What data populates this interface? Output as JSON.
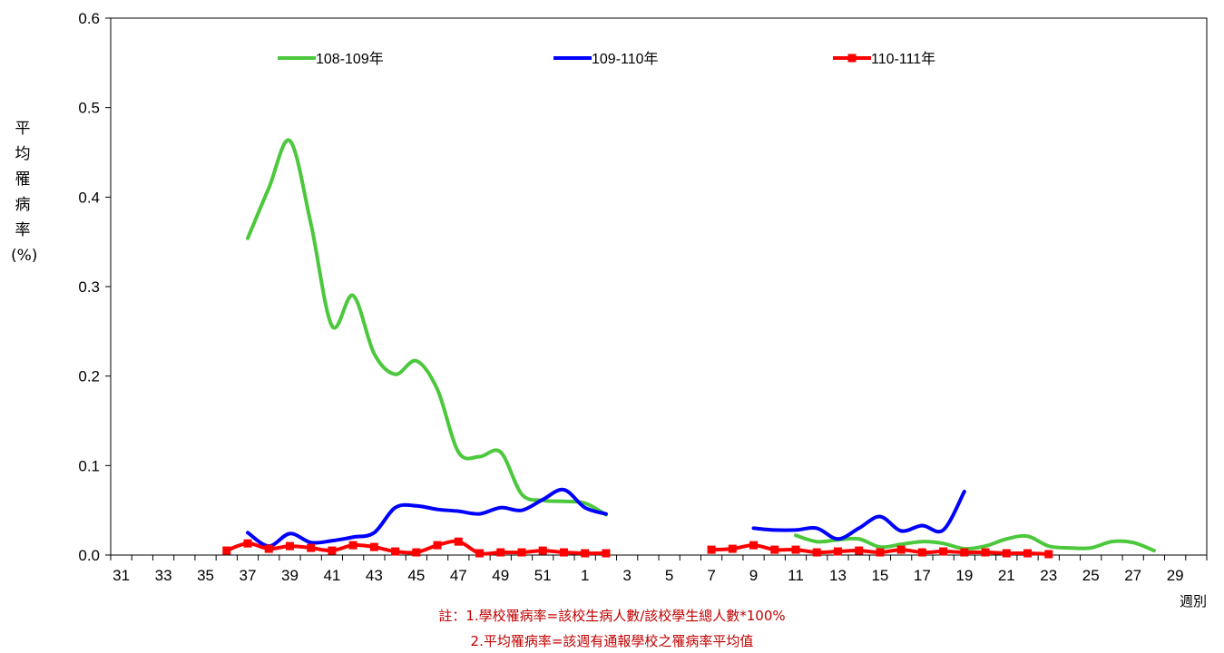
{
  "chart_data": {
    "type": "line",
    "ylabel": "平均罹病率(%)",
    "xlabel": "週別",
    "ylim": [
      0,
      0.6
    ],
    "yticks": [
      "0.0",
      "0.1",
      "0.2",
      "0.3",
      "0.4",
      "0.5",
      "0.6"
    ],
    "week_order": [
      31,
      32,
      33,
      34,
      35,
      36,
      37,
      38,
      39,
      40,
      41,
      42,
      43,
      44,
      45,
      46,
      47,
      48,
      49,
      50,
      51,
      52,
      1,
      2,
      3,
      4,
      5,
      6,
      7,
      8,
      9,
      10,
      11,
      12,
      13,
      14,
      15,
      16,
      17,
      18,
      19,
      20,
      21,
      22,
      23,
      24,
      25,
      26,
      27,
      28,
      29,
      30
    ],
    "xtick_labels": [
      "31",
      "33",
      "35",
      "37",
      "39",
      "41",
      "43",
      "45",
      "47",
      "49",
      "51",
      "1",
      "3",
      "5",
      "7",
      "9",
      "11",
      "13",
      "15",
      "17",
      "19",
      "21",
      "23",
      "25",
      "27",
      "29"
    ],
    "legend_position": "top",
    "series": [
      {
        "name": "108-109年",
        "color": "#4cc83c",
        "marker": "none",
        "segments": [
          [
            [
              37,
              0.354
            ],
            [
              38,
              0.41
            ],
            [
              39,
              0.463
            ],
            [
              40,
              0.37
            ],
            [
              41,
              0.256
            ],
            [
              42,
              0.29
            ],
            [
              43,
              0.225
            ],
            [
              44,
              0.202
            ],
            [
              45,
              0.217
            ],
            [
              46,
              0.185
            ],
            [
              47,
              0.115
            ],
            [
              48,
              0.11
            ],
            [
              49,
              0.115
            ],
            [
              50,
              0.068
            ],
            [
              51,
              0.061
            ],
            [
              52,
              0.06
            ],
            [
              1,
              0.058
            ],
            [
              2,
              0.045
            ]
          ],
          [
            [
              11,
              0.022
            ],
            [
              12,
              0.015
            ],
            [
              13,
              0.017
            ],
            [
              14,
              0.018
            ],
            [
              15,
              0.009
            ],
            [
              16,
              0.012
            ],
            [
              17,
              0.015
            ],
            [
              18,
              0.013
            ],
            [
              19,
              0.007
            ],
            [
              20,
              0.01
            ],
            [
              21,
              0.018
            ],
            [
              22,
              0.021
            ],
            [
              23,
              0.01
            ],
            [
              24,
              0.008
            ],
            [
              25,
              0.008
            ],
            [
              26,
              0.015
            ],
            [
              27,
              0.014
            ],
            [
              28,
              0.005
            ]
          ]
        ]
      },
      {
        "name": "109-110年",
        "color": "#0000ff",
        "marker": "none",
        "segments": [
          [
            [
              37,
              0.025
            ],
            [
              38,
              0.01
            ],
            [
              39,
              0.024
            ],
            [
              40,
              0.014
            ],
            [
              41,
              0.016
            ],
            [
              42,
              0.02
            ],
            [
              43,
              0.025
            ],
            [
              44,
              0.053
            ],
            [
              45,
              0.055
            ],
            [
              46,
              0.051
            ],
            [
              47,
              0.049
            ],
            [
              48,
              0.046
            ],
            [
              49,
              0.053
            ],
            [
              50,
              0.05
            ],
            [
              51,
              0.062
            ],
            [
              52,
              0.073
            ],
            [
              1,
              0.053
            ],
            [
              2,
              0.046
            ]
          ],
          [
            [
              9,
              0.03
            ],
            [
              10,
              0.028
            ],
            [
              11,
              0.028
            ],
            [
              12,
              0.03
            ],
            [
              13,
              0.018
            ],
            [
              14,
              0.03
            ],
            [
              15,
              0.043
            ],
            [
              16,
              0.027
            ],
            [
              17,
              0.033
            ],
            [
              18,
              0.028
            ],
            [
              19,
              0.071
            ]
          ]
        ]
      },
      {
        "name": "110-111年",
        "color": "#ff0000",
        "marker": "square",
        "segments": [
          [
            [
              36,
              0.005
            ],
            [
              37,
              0.013
            ],
            [
              38,
              0.007
            ],
            [
              39,
              0.01
            ],
            [
              40,
              0.008
            ],
            [
              41,
              0.005
            ],
            [
              42,
              0.011
            ],
            [
              43,
              0.009
            ],
            [
              44,
              0.004
            ],
            [
              45,
              0.003
            ],
            [
              46,
              0.011
            ],
            [
              47,
              0.015
            ],
            [
              48,
              0.002
            ],
            [
              49,
              0.003
            ],
            [
              50,
              0.003
            ],
            [
              51,
              0.005
            ],
            [
              52,
              0.003
            ],
            [
              1,
              0.002
            ],
            [
              2,
              0.002
            ]
          ],
          [
            [
              7,
              0.006
            ],
            [
              8,
              0.007
            ],
            [
              9,
              0.011
            ],
            [
              10,
              0.006
            ],
            [
              11,
              0.006
            ],
            [
              12,
              0.003
            ],
            [
              13,
              0.004
            ],
            [
              14,
              0.005
            ],
            [
              15,
              0.003
            ],
            [
              16,
              0.006
            ],
            [
              17,
              0.003
            ],
            [
              18,
              0.004
            ],
            [
              19,
              0.003
            ],
            [
              20,
              0.003
            ],
            [
              21,
              0.002
            ],
            [
              22,
              0.002
            ],
            [
              23,
              0.001
            ]
          ]
        ]
      }
    ],
    "notes": [
      "註：1.學校罹病率=該校生病人數/該校學生總人數*100%",
      "2.平均罹病率=該週有通報學校之罹病率平均值"
    ]
  }
}
